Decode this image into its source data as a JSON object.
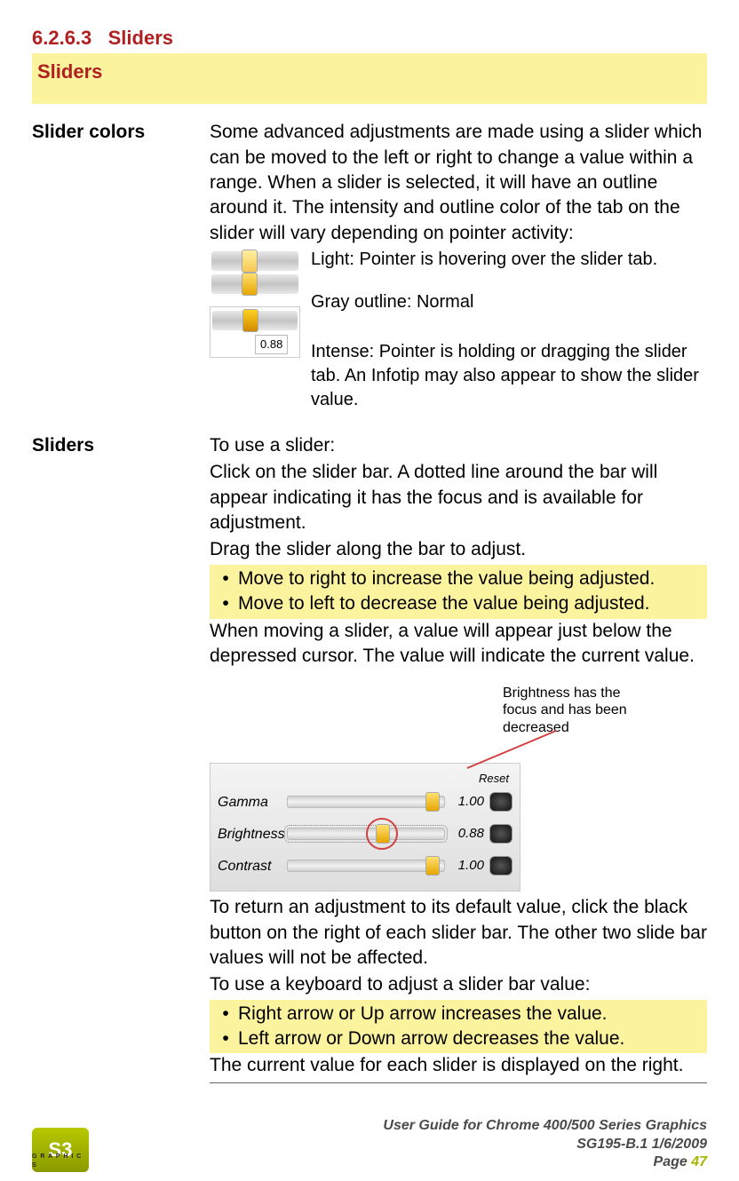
{
  "section_number": "6.2.6.3",
  "section_title": "Sliders",
  "banner_title": "Sliders",
  "slider_colors": {
    "label": "Slider colors",
    "intro": "Some advanced adjustments are made using a slider which can be moved to the left or right to change a value within a range. When a slider is selected, it will have an outline around it. The intensity and outline color of the tab on the slider will vary depending on pointer activity:",
    "light": "Light: Pointer is hovering over the slider tab.",
    "gray": "Gray outline: Normal",
    "intense": "Intense: Pointer is holding or dragging the slider tab. An Infotip may also appear to show the slider value.",
    "infotip_value": "0.88"
  },
  "sliders_usage": {
    "label": "Sliders",
    "intro1": "To use a slider:",
    "intro2": "Click on the slider bar. A dotted line around the bar will appear indicating it has the focus and is available for adjustment.",
    "intro3": "Drag the slider along the bar to adjust.",
    "hl1": "Move to right to increase the value being adjusted.",
    "hl2": "Move to left to decrease the value being adjusted.",
    "after1": "When moving a slider, a value will appear just below the depressed cursor. The value will indicate the current value.",
    "callout": "Brightness has the focus and has been decreased",
    "panel": {
      "reset_hdr": "Reset",
      "rows": [
        {
          "label": "Gamma",
          "value": "1.00",
          "pos": 0.92,
          "focus": false
        },
        {
          "label": "Brightness",
          "value": "0.88",
          "pos": 0.6,
          "focus": true
        },
        {
          "label": "Contrast",
          "value": "1.00",
          "pos": 0.92,
          "focus": false
        }
      ]
    },
    "after2": "To return an adjustment to its default value, click the black button on the right of each slider bar. The other two slide bar values will not be affected.",
    "after3": "To use a keyboard to adjust a slider bar value:",
    "hl3": "Right arrow or Up arrow increases the value.",
    "hl4": "Left arrow or Down arrow decreases the value.",
    "after4": "The current value for each slider is displayed on the right."
  },
  "footer": {
    "logo_text": "S3",
    "logo_sub": "G R A P H I C S",
    "line1": "User Guide for Chrome 400/500 Series Graphics",
    "line2": "SG195-B.1   1/6/2009",
    "page_label": "Page ",
    "page_num": "47"
  },
  "colors": {
    "heading_red": "#b02020",
    "highlight_yellow": "#fcf39f",
    "logo_green": "#a8b400",
    "callout_red": "#d04040"
  }
}
